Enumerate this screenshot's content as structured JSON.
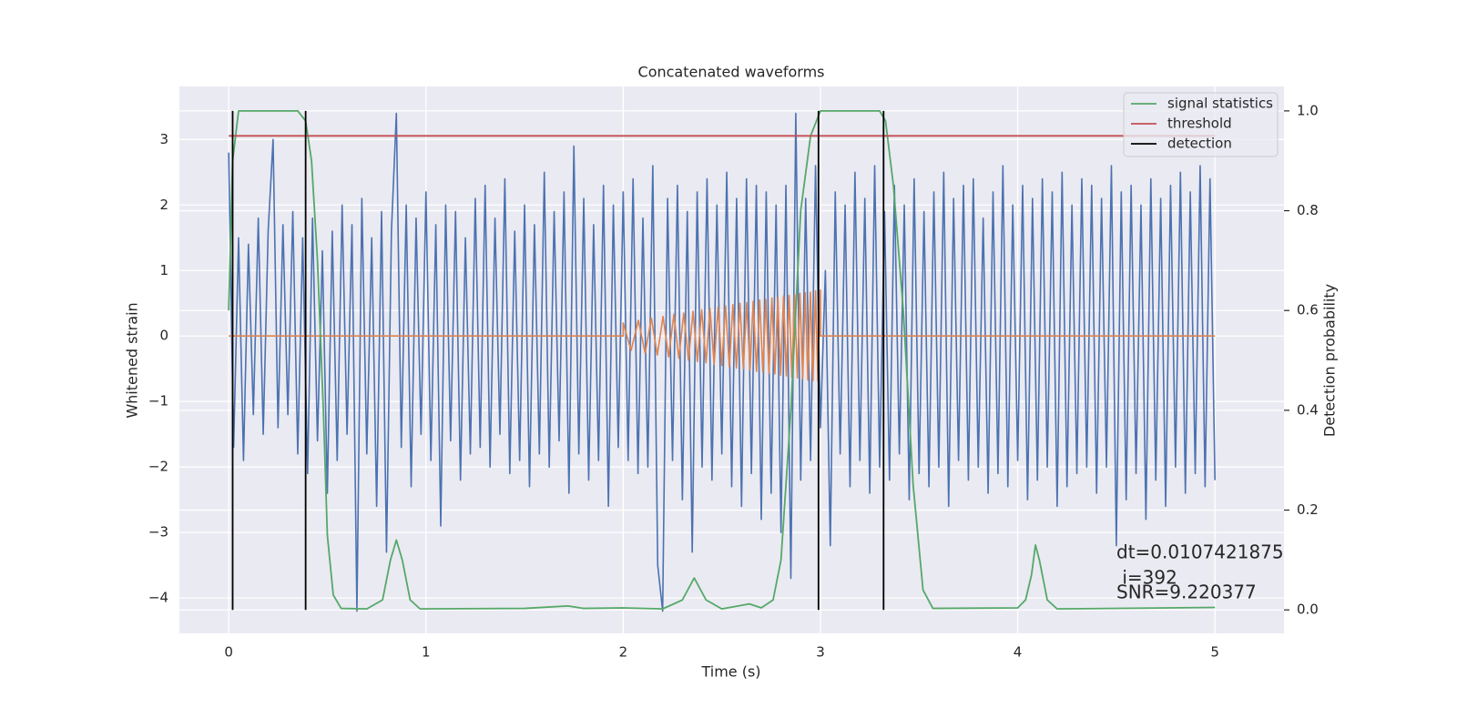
{
  "chart_data": {
    "type": "line",
    "title": "Concatenated waveforms",
    "xlabel": "Time (s)",
    "ylabel": "Whitened strain",
    "y2label": "Detection probability",
    "xlim": [
      -0.25,
      5.35
    ],
    "ylim": [
      -4.54,
      3.81
    ],
    "y2lim": [
      -0.047,
      1.049
    ],
    "xticks": [
      0,
      1,
      2,
      3,
      4,
      5
    ],
    "yticks": [
      {
        "value": -4,
        "label": "−4"
      },
      {
        "value": -3,
        "label": "−3"
      },
      {
        "value": -2,
        "label": "−2"
      },
      {
        "value": -1,
        "label": "−1"
      },
      0,
      1,
      2,
      3
    ],
    "y2ticks": [
      {
        "value": 0,
        "label": "0.0"
      },
      0.2,
      0.4,
      0.6,
      0.8,
      {
        "value": 1,
        "label": "1.0"
      }
    ],
    "grid": true,
    "legend": "upper right",
    "annotation": [
      "dt=0.0107421875",
      " i=392",
      "SNR=9.220377"
    ],
    "series": [
      {
        "color": "#4c72b0",
        "x": [
          0,
          0.025,
          0.05,
          0.075,
          0.1,
          0.125,
          0.15,
          0.175,
          0.2,
          0.225,
          0.25,
          0.275,
          0.3,
          0.325,
          0.35,
          0.375,
          0.4,
          0.425,
          0.45,
          0.475,
          0.5,
          0.525,
          0.55,
          0.575,
          0.6,
          0.625,
          0.65,
          0.675,
          0.7,
          0.725,
          0.75,
          0.775,
          0.8,
          0.825,
          0.85,
          0.875,
          0.9,
          0.925,
          0.95,
          0.975,
          1,
          1.025,
          1.05,
          1.075,
          1.1,
          1.125,
          1.15,
          1.175,
          1.2,
          1.225,
          1.25,
          1.275,
          1.3,
          1.325,
          1.35,
          1.375,
          1.4,
          1.425,
          1.45,
          1.475,
          1.5,
          1.525,
          1.55,
          1.575,
          1.6,
          1.625,
          1.65,
          1.675,
          1.7,
          1.725,
          1.75,
          1.775,
          1.8,
          1.825,
          1.85,
          1.875,
          1.9,
          1.925,
          1.95,
          1.975,
          2,
          2.025,
          2.05,
          2.075,
          2.1,
          2.125,
          2.15,
          2.175,
          2.2,
          2.225,
          2.25,
          2.275,
          2.3,
          2.325,
          2.35,
          2.375,
          2.4,
          2.425,
          2.45,
          2.475,
          2.5,
          2.525,
          2.55,
          2.575,
          2.6,
          2.625,
          2.65,
          2.675,
          2.7,
          2.725,
          2.75,
          2.775,
          2.8,
          2.825,
          2.85,
          2.875,
          2.9,
          2.925,
          2.95,
          2.975,
          3,
          3.025,
          3.05,
          3.075,
          3.1,
          3.125,
          3.15,
          3.175,
          3.2,
          3.225,
          3.25,
          3.275,
          3.3,
          3.325,
          3.35,
          3.375,
          3.4,
          3.425,
          3.45,
          3.475,
          3.5,
          3.525,
          3.55,
          3.575,
          3.6,
          3.625,
          3.65,
          3.675,
          3.7,
          3.725,
          3.75,
          3.775,
          3.8,
          3.825,
          3.85,
          3.875,
          3.9,
          3.925,
          3.95,
          3.975,
          4,
          4.025,
          4.05,
          4.075,
          4.1,
          4.125,
          4.15,
          4.175,
          4.2,
          4.225,
          4.25,
          4.275,
          4.3,
          4.325,
          4.35,
          4.375,
          4.4,
          4.425,
          4.45,
          4.475,
          4.5,
          4.525,
          4.55,
          4.575,
          4.6,
          4.625,
          4.65,
          4.675,
          4.7,
          4.725,
          4.75,
          4.775,
          4.8,
          4.825,
          4.85,
          4.875,
          4.9,
          4.925,
          4.95,
          4.975,
          5
        ],
        "values": [
          2.8,
          -1.7,
          1.5,
          -1.9,
          1.4,
          -1.2,
          1.8,
          -1.5,
          1.6,
          3.0,
          -1.4,
          1.7,
          -1.2,
          1.9,
          -1.8,
          1.5,
          -2.1,
          1.8,
          -1.6,
          1.3,
          -2.4,
          1.6,
          -1.9,
          2.0,
          -1.5,
          1.7,
          -4.2,
          2.1,
          -1.8,
          1.5,
          -2.6,
          1.9,
          -3.3,
          1.6,
          3.4,
          -1.7,
          2.0,
          -2.3,
          1.8,
          -1.5,
          2.2,
          -1.9,
          1.7,
          -2.9,
          2.0,
          -1.6,
          1.9,
          -2.2,
          1.5,
          -1.8,
          2.1,
          -1.7,
          2.3,
          -2.0,
          1.8,
          -1.5,
          2.4,
          -2.1,
          1.6,
          -1.9,
          2.0,
          -2.3,
          1.7,
          -1.8,
          2.5,
          -2.0,
          1.9,
          -1.6,
          2.2,
          -2.4,
          2.9,
          -1.8,
          2.1,
          -2.2,
          1.7,
          -1.9,
          2.3,
          -2.6,
          2.0,
          -1.7,
          2.2,
          -1.9,
          2.4,
          -2.1,
          1.8,
          -2.0,
          2.6,
          -3.5,
          -4.2,
          2.1,
          -1.9,
          2.3,
          -2.5,
          1.9,
          -3.3,
          2.2,
          -2.0,
          2.4,
          -2.2,
          2.0,
          -1.8,
          2.5,
          -2.3,
          2.1,
          -2.6,
          2.4,
          -2.1,
          2.3,
          -2.8,
          2.2,
          -2.4,
          2.0,
          -3.0,
          2.3,
          -3.7,
          3.4,
          -2.2,
          2.1,
          -1.9,
          2.6,
          -1.4,
          1.0,
          -3.2,
          2.2,
          -1.8,
          2.0,
          -2.3,
          2.5,
          -1.9,
          2.1,
          -2.4,
          2.6,
          -2.0,
          1.9,
          -2.2,
          2.3,
          -1.8,
          2.0,
          -2.5,
          2.4,
          -2.1,
          1.9,
          -2.3,
          2.2,
          -2.0,
          2.5,
          -2.6,
          2.1,
          -1.9,
          2.3,
          -2.2,
          2.4,
          -2.0,
          1.8,
          -2.4,
          2.2,
          -2.1,
          2.6,
          -2.3,
          2.0,
          -1.9,
          2.3,
          -2.5,
          2.1,
          -2.2,
          2.4,
          -2.0,
          2.2,
          -2.6,
          2.5,
          -2.3,
          2.0,
          -2.1,
          2.4,
          -2.0,
          2.3,
          -2.4,
          2.1,
          -2.0,
          2.6,
          -3.2,
          2.2,
          -2.5,
          2.3,
          -2.1,
          2.0,
          -2.8,
          2.4,
          -2.2,
          2.1,
          -2.6,
          2.3,
          -2.0,
          2.5,
          -2.4,
          2.2,
          -2.1,
          2.6,
          -2.3,
          2.4,
          -2.2
        ]
      },
      {
        "color": "#dd8452",
        "x": [
          0,
          2,
          2,
          2.04,
          2.077,
          2.111,
          2.143,
          2.173,
          2.202,
          2.23,
          2.257,
          2.282,
          2.307,
          2.331,
          2.354,
          2.376,
          2.398,
          2.42,
          2.44,
          2.461,
          2.481,
          2.5,
          2.519,
          2.538,
          2.556,
          2.574,
          2.592,
          2.609,
          2.626,
          2.643,
          2.659,
          2.676,
          2.692,
          2.708,
          2.723,
          2.739,
          2.754,
          2.769,
          2.784,
          2.798,
          2.813,
          2.827,
          2.841,
          2.855,
          2.869,
          2.883,
          2.896,
          2.91,
          2.923,
          2.936,
          2.949,
          2.962,
          2.975,
          2.987,
          3,
          3,
          5
        ],
        "values": [
          0,
          0,
          0.2,
          -0.22,
          0.24,
          -0.26,
          0.27,
          -0.29,
          0.3,
          -0.32,
          0.33,
          -0.34,
          0.35,
          -0.37,
          0.38,
          -0.39,
          0.4,
          -0.41,
          0.42,
          -0.43,
          0.44,
          -0.45,
          0.46,
          -0.47,
          0.48,
          -0.49,
          0.5,
          -0.5,
          0.51,
          -0.52,
          0.53,
          -0.54,
          0.55,
          -0.55,
          0.56,
          -0.57,
          0.58,
          -0.58,
          0.59,
          -0.6,
          0.61,
          -0.61,
          0.62,
          -0.63,
          0.63,
          -0.64,
          0.65,
          -0.65,
          0.66,
          -0.67,
          0.67,
          -0.68,
          0.69,
          -0.69,
          0.7,
          0,
          0
        ]
      },
      {
        "name": "signal statistics",
        "color": "#55a868",
        "axis": "y2",
        "x": [
          0,
          0.02,
          0.05,
          0.1,
          0.35,
          0.39,
          0.42,
          0.45,
          0.48,
          0.5,
          0.53,
          0.57,
          0.7,
          0.78,
          0.82,
          0.85,
          0.88,
          0.92,
          0.97,
          1.5,
          1.72,
          1.8,
          2,
          2.2,
          2.3,
          2.36,
          2.42,
          2.5,
          2.64,
          2.7,
          2.76,
          2.8,
          2.85,
          2.9,
          2.95,
          3,
          3.3,
          3.33,
          3.37,
          3.42,
          3.47,
          3.52,
          3.57,
          4,
          4.04,
          4.07,
          4.09,
          4.11,
          4.15,
          4.2,
          5
        ],
        "values": [
          0.6,
          0.9,
          1,
          1,
          1,
          0.98,
          0.9,
          0.7,
          0.4,
          0.15,
          0.03,
          0.003,
          0.002,
          0.02,
          0.1,
          0.14,
          0.1,
          0.02,
          0.002,
          0.003,
          0.008,
          0.003,
          0.004,
          0.002,
          0.02,
          0.064,
          0.02,
          0.002,
          0.012,
          0.004,
          0.02,
          0.1,
          0.4,
          0.8,
          0.95,
          1,
          1,
          0.98,
          0.85,
          0.6,
          0.25,
          0.04,
          0.003,
          0.004,
          0.02,
          0.07,
          0.13,
          0.1,
          0.02,
          0.002,
          0.005
        ]
      },
      {
        "name": "threshold",
        "color": "#c44e52",
        "axis": "y2",
        "x": [
          0,
          5
        ],
        "values": [
          0.95,
          0.95
        ]
      },
      {
        "name": "detection",
        "color": "#000000",
        "axis": "y2",
        "x": [
          0.02,
          0.02,
          null,
          0.39,
          0.39,
          null,
          2.99,
          2.99,
          null,
          3.32,
          3.32
        ],
        "values": [
          0,
          1,
          null,
          0,
          1,
          null,
          0,
          1,
          null,
          0,
          1
        ]
      }
    ]
  }
}
